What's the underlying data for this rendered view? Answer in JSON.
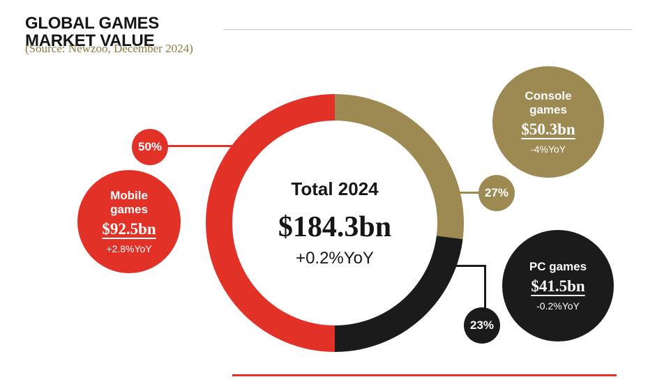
{
  "header": {
    "title_line1": "GLOBAL GAMES",
    "title_line2": "MARKET VALUE",
    "source": "(Source: Newzoo, December 2024)"
  },
  "colors": {
    "red": "#e23127",
    "gold": "#9d8a52",
    "black": "#1b1b1b",
    "source_text": "#8c7b43",
    "rule_gray": "#cccccc"
  },
  "chart_data": {
    "type": "pie",
    "title": "Total 2024",
    "center_value": "$184.3bn",
    "center_yoy": "+0.2%YoY",
    "legend_position": "callout-bubbles",
    "segments": [
      {
        "name": "Console games",
        "percent": 27,
        "percent_label": "27%",
        "value_label": "$50.3bn",
        "yoy": "-4%YoY",
        "color": "#9d8a52"
      },
      {
        "name": "PC games",
        "percent": 23,
        "percent_label": "23%",
        "value_label": "$41.5bn",
        "yoy": "-0.2%YoY",
        "color": "#1b1b1b"
      },
      {
        "name": "Mobile games",
        "percent": 50,
        "percent_label": "50%",
        "value_label": "$92.5bn",
        "yoy": "+2.8%YoY",
        "color": "#e23127"
      }
    ]
  }
}
